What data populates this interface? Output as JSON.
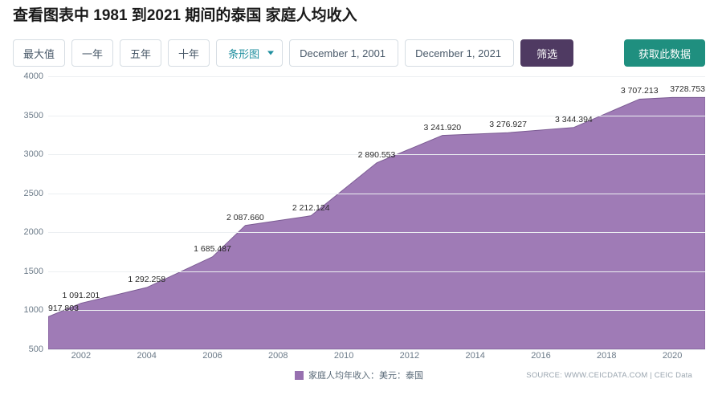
{
  "title": "查看图表中 1981 到2021 期间的泰国 家庭人均收入",
  "controls": {
    "max": "最大值",
    "one_year": "一年",
    "five_year": "五年",
    "ten_year": "十年",
    "chart_type": "条形图",
    "date_from": "December 1, 2001",
    "date_to": "December 1, 2021",
    "filter": "筛选",
    "get_data": "获取此数据"
  },
  "chart": {
    "type": "area",
    "series_color": "#9770b0",
    "series_border": "#7a5a92",
    "background_color": "#ffffff",
    "grid_color": "#eceff2",
    "text_color": "#6b7a88",
    "label_fontsize": 11,
    "ylim": [
      500,
      4000
    ],
    "yticks": [
      500,
      1000,
      1500,
      2000,
      2500,
      3000,
      3500,
      4000
    ],
    "xlim": [
      2001,
      2021
    ],
    "xticks": [
      2002,
      2004,
      2006,
      2008,
      2010,
      2012,
      2014,
      2016,
      2018,
      2020
    ],
    "points": [
      {
        "year": 2001,
        "value": 917.803,
        "label": "917.803",
        "label_align": "left"
      },
      {
        "year": 2002,
        "value": 1091.201,
        "label": "1 091.201"
      },
      {
        "year": 2004,
        "value": 1292.258,
        "label": "1 292.258"
      },
      {
        "year": 2006,
        "value": 1685.487,
        "label": "1 685.487"
      },
      {
        "year": 2007,
        "value": 2087.66,
        "label": "2 087.660"
      },
      {
        "year": 2009,
        "value": 2212.124,
        "label": "2 212.124"
      },
      {
        "year": 2011,
        "value": 2890.553,
        "label": "2 890.553"
      },
      {
        "year": 2013,
        "value": 3241.92,
        "label": "3 241.920"
      },
      {
        "year": 2015,
        "value": 3276.927,
        "label": "3 276.927"
      },
      {
        "year": 2017,
        "value": 3344.394,
        "label": "3 344.394"
      },
      {
        "year": 2019,
        "value": 3707.213,
        "label": "3 707.213"
      },
      {
        "year": 2020,
        "value": 3728.0,
        "label": ""
      },
      {
        "year": 2021,
        "value": 3728.753,
        "label": "3728.753",
        "label_align": "right"
      }
    ]
  },
  "legend": {
    "label": "家庭人均年收入：美元：泰国"
  },
  "source": "SOURCE: WWW.CEICDATA.COM | CEIC Data"
}
